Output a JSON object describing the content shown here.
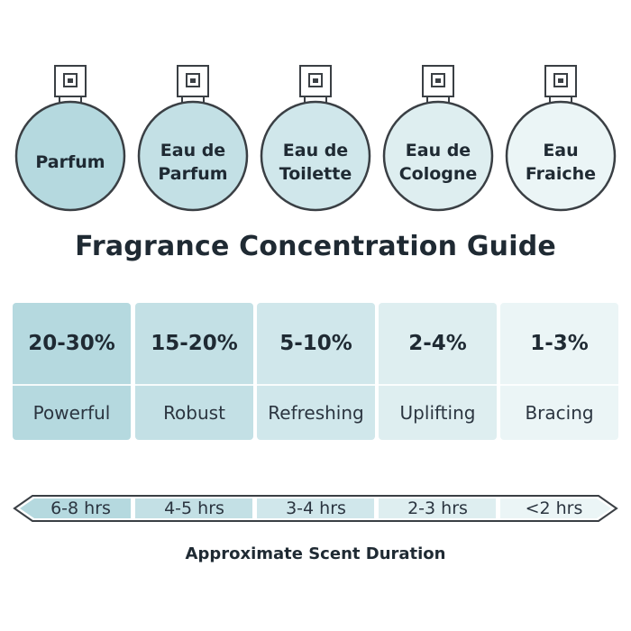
{
  "colors": {
    "ink": "#1f2a33",
    "tier1": "#b5d9df",
    "tier2": "#c3e0e5",
    "tier3": "#d0e7eb",
    "tier4": "#deeef0",
    "tier5": "#ebf5f6"
  },
  "bottles": [
    {
      "lines": [
        "Parfum"
      ]
    },
    {
      "lines": [
        "Eau de",
        "Parfum"
      ]
    },
    {
      "lines": [
        "Eau de",
        "Toilette"
      ]
    },
    {
      "lines": [
        "Eau de",
        "Cologne"
      ]
    },
    {
      "lines": [
        "Eau",
        "Fraiche"
      ]
    }
  ],
  "title": "Fragrance Concentration Guide",
  "concentrations": [
    {
      "percent": "20-30%",
      "descriptor": "Powerful"
    },
    {
      "percent": "15-20%",
      "descriptor": "Robust"
    },
    {
      "percent": "5-10%",
      "descriptor": "Refreshing"
    },
    {
      "percent": "2-4%",
      "descriptor": "Uplifting"
    },
    {
      "percent": "1-3%",
      "descriptor": "Bracing"
    }
  ],
  "durations": [
    "6-8 hrs",
    "4-5 hrs",
    "3-4 hrs",
    "2-3 hrs",
    "<2 hrs"
  ],
  "duration_caption": "Approximate Scent Duration"
}
